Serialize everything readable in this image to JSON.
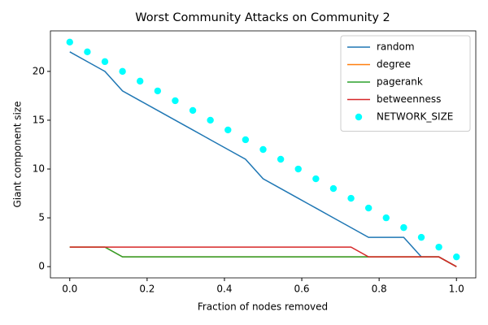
{
  "chart_data": {
    "type": "line",
    "title": "Worst Community Attacks on Community 2",
    "x_label": "Fraction of nodes removed",
    "y_label": "Giant component size",
    "x": [
      0,
      0.0455,
      0.0909,
      0.1364,
      0.1818,
      0.2273,
      0.2727,
      0.3182,
      0.3636,
      0.4091,
      0.4545,
      0.5,
      0.5455,
      0.5909,
      0.6364,
      0.6818,
      0.7273,
      0.7727,
      0.8182,
      0.8636,
      0.9091,
      0.9545,
      1
    ],
    "series": [
      {
        "name": "random",
        "color": "#1f77b4",
        "style": "line",
        "values": [
          22,
          21,
          20,
          18,
          17,
          16,
          15,
          14,
          13,
          12,
          11,
          9,
          8,
          7,
          6,
          5,
          4,
          3,
          3,
          3,
          1,
          1,
          0
        ]
      },
      {
        "name": "degree",
        "color": "#ff7f0e",
        "style": "line",
        "values": [
          2,
          2,
          2,
          1,
          1,
          1,
          1,
          1,
          1,
          1,
          1,
          1,
          1,
          1,
          1,
          1,
          1,
          1,
          1,
          1,
          1,
          1,
          0
        ]
      },
      {
        "name": "pagerank",
        "color": "#2ca02c",
        "style": "line",
        "values": [
          2,
          2,
          2,
          1,
          1,
          1,
          1,
          1,
          1,
          1,
          1,
          1,
          1,
          1,
          1,
          1,
          1,
          1,
          1,
          1,
          1,
          1,
          0
        ]
      },
      {
        "name": "betweenness",
        "color": "#d62728",
        "style": "line",
        "values": [
          2,
          2,
          2,
          2,
          2,
          2,
          2,
          2,
          2,
          2,
          2,
          2,
          2,
          2,
          2,
          2,
          2,
          1,
          1,
          1,
          1,
          1,
          0
        ]
      },
      {
        "name": "NETWORK_SIZE",
        "color": "#00ffff",
        "style": "scatter",
        "values": [
          23,
          22,
          21,
          20,
          19,
          18,
          17,
          16,
          15,
          14,
          13,
          12,
          11,
          10,
          9,
          8,
          7,
          6,
          5,
          4,
          3,
          2,
          1
        ]
      }
    ],
    "xlim": [
      -0.05,
      1.05
    ],
    "ylim": [
      -1.15,
      24.15
    ],
    "xticks": [
      {
        "value": 0,
        "label": "0.0"
      },
      {
        "value": 0.2,
        "label": "0.2"
      },
      {
        "value": 0.4,
        "label": "0.4"
      },
      {
        "value": 0.6,
        "label": "0.6"
      },
      {
        "value": 0.8,
        "label": "0.8"
      },
      {
        "value": 1,
        "label": "1.0"
      }
    ],
    "yticks": [
      0,
      5,
      10,
      15,
      20
    ],
    "legend": "upper right"
  }
}
